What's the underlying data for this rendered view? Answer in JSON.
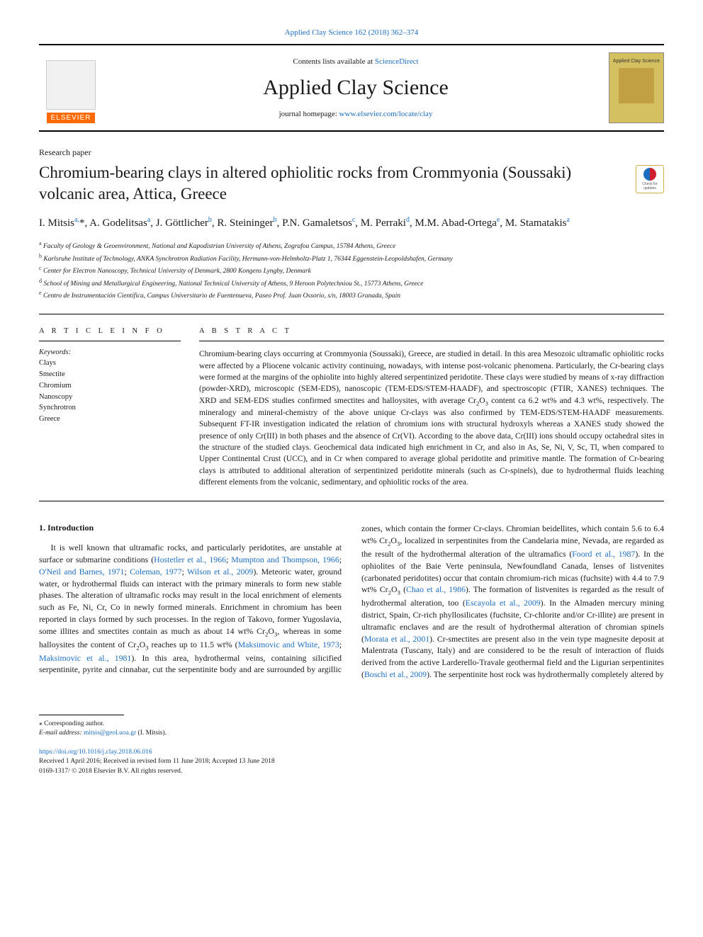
{
  "journal": {
    "ref": "Applied Clay Science 162 (2018) 362–374",
    "lists_pre": "Contents lists available at ",
    "lists_link": "ScienceDirect",
    "name": "Applied Clay Science",
    "homepage_pre": "journal homepage: ",
    "homepage_link": "www.elsevier.com/locate/clay",
    "publisher_logo_text": "ELSEVIER",
    "cover_title": "Applied Clay Science"
  },
  "article": {
    "type": "Research paper",
    "title": "Chromium-bearing clays in altered ophiolitic rocks from Crommyonia (Soussaki) volcanic area, Attica, Greece",
    "check_updates": "Check for updates"
  },
  "authors_html": "I. Mitsis<sup>a,</sup>*, A. Godelitsas<sup>a</sup>, J. Göttlicher<sup>b</sup>, R. Steininger<sup>b</sup>, P.N. Gamaletsos<sup>c</sup>, M. Perraki<sup>d</sup>, M.M. Abad-Ortega<sup>e</sup>, M. Stamatakis<sup>a</sup>",
  "affiliations": [
    {
      "sup": "a",
      "text": "Faculty of Geology & Geoenvironment, National and Kapodistrian University of Athens, Zografou Campus, 15784 Athens, Greece"
    },
    {
      "sup": "b",
      "text": "Karlsruhe Institute of Technology, ANKA Synchrotron Radiation Facility, Hermann-von-Helmholtz-Platz 1, 76344 Eggenstein-Leopoldshafen, Germany"
    },
    {
      "sup": "c",
      "text": "Center for Electron Nanoscopy, Technical University of Denmark, 2800 Kongens Lyngby, Denmark"
    },
    {
      "sup": "d",
      "text": "School of Mining and Metallurgical Engineering, National Technical University of Athens, 9 Heroon Polytechniou St., 15773 Athens, Greece"
    },
    {
      "sup": "e",
      "text": "Centro de Instrumentación Científica, Campus Universitario de Fuentenueva, Paseo Prof. Juan Ossorio, s/n, 18003 Granada, Spain"
    }
  ],
  "article_info": {
    "heading": "A R T I C L E  I N F O",
    "keywords_label": "Keywords:",
    "keywords": [
      "Clays",
      "Smectite",
      "Chromium",
      "Nanoscopy",
      "Synchrotron",
      "Greece"
    ]
  },
  "abstract": {
    "heading": "A B S T R A C T",
    "text_html": "Chromium-bearing clays occurring at Crommyonia (Soussaki), Greece, are studied in detail. In this area Mesozoic ultramafic ophiolitic rocks were affected by a Pliocene volcanic activity continuing, nowadays, with intense post-volcanic phenomena. Particularly, the Cr-bearing clays were formed at the margins of the ophiolite into highly altered serpentinized peridotite. These clays were studied by means of x-ray diffraction (powder-XRD), microscopic (SEM-EDS), nanoscopic (TEM-EDS/STEM-HAADF), and spectroscopic (FTIR, XANES) techniques. The XRD and SEM-EDS studies confirmed smectites and halloysites, with average Cr<sub>2</sub>O<sub>3</sub> content ca 6.2 wt% and 4.3 wt%, respectively. The mineralogy and mineral-chemistry of the above unique Cr-clays was also confirmed by TEM-EDS/STEM-HAADF measurements. Subsequent FT-IR investigation indicated the relation of chromium ions with structural hydroxyls whereas a XANES study showed the presence of only Cr(III) in both phases and the absence of Cr(VI). According to the above data, Cr(III) ions should occupy octahedral sites in the structure of the studied clays. Geochemical data indicated high enrichment in Cr, and also in As, Se, Ni, V, Sc, Tl, when compared to Upper Continental Crust (UCC), and in Cr when compared to average global peridotite and primitive mantle. The formation of Cr-bearing clays is attributed to additional alteration of serpentinized peridotite minerals (such as Cr-spinels), due to hydrothermal fluids leaching different elements from the volcanic, sedimentary, and ophiolitic rocks of the area."
  },
  "body": {
    "section1_title": "1. Introduction",
    "intro_html": "It is well known that ultramafic rocks, and particularly peridotites, are unstable at surface or submarine conditions (<a class='cite' href='#'>Hostetler et al., 1966</a>; <a class='cite' href='#'>Mumpton and Thompson, 1966</a>; <a class='cite' href='#'>O'Neil and Barnes, 1971</a>; <a class='cite' href='#'>Coleman, 1977</a>; <a class='cite' href='#'>Wilson et al., 2009</a>). Meteoric water, ground water, or hydrothermal fluids can interact with the primary minerals to form new stable phases. The alteration of ultramafic rocks may result in the local enrichment of elements such as Fe, Ni, Cr, Co in newly formed minerals. Enrichment in chromium has been reported in clays formed by such processes. In the region of Takovo, former Yugoslavia, some illites and smectites contain as much as about 14 wt% Cr<sub>2</sub>O<sub>3</sub>, whereas in some halloysites the content of Cr<sub>2</sub>O<sub>3</sub> reaches up to 11.5 wt% (<a class='cite' href='#'>Maksimovic and White, 1973</a>; <a class='cite' href='#'>Maksimovic et al., 1981</a>). In this area, hydrothermal veins, containing silicified serpentinite, pyrite and cinnabar, cut the serpentinite body and are surrounded by argillic zones, which contain the former Cr-clays. Chromian beidellites, which contain 5.6 to 6.4 wt% Cr<sub>2</sub>O<sub>3</sub>, localized in serpentinites from the Candelaria mine, Nevada, are regarded as the result of the hydrothermal alteration of the ultramafics (<a class='cite' href='#'>Foord et al., 1987</a>). In the ophiolites of the Baie Verte peninsula, Newfoundland Canada, lenses of listvenites (carbonated peridotites) occur that contain chromium-rich micas (fuchsite) with 4.4 to 7.9 wt% Cr<sub>2</sub>O<sub>3</sub> (<a class='cite' href='#'>Chao et al., 1986</a>). The formation of listvenites is regarded as the result of hydrothermal alteration, too (<a class='cite' href='#'>Escayola et al., 2009</a>). In the Almaden mercury mining district, Spain, Cr-rich phyllosilicates (fuchsite, Cr-chlorite and/or Cr-illite) are present in ultramafic enclaves and are the result of hydrothermal alteration of chromian spinels (<a class='cite' href='#'>Morata et al., 2001</a>). Cr-smectites are present also in the vein type magnesite deposit at Malentrata (Tuscany, Italy) and are considered to be the result of interaction of fluids derived from the active Larderello-Travale geothermal field and the Ligurian serpentinites (<a class='cite' href='#'>Boschi et al., 2009</a>). The serpentinite host rock was hydrothermally completely altered by"
  },
  "footnotes": {
    "corresp": "⁎ Corresponding author.",
    "email_label": "E-mail address: ",
    "email": "mitsis@geol.uoa.gr",
    "email_tail": " (I. Mitsis)."
  },
  "doi": {
    "link": "https://doi.org/10.1016/j.clay.2018.06.016",
    "received": "Received 1 April 2016; Received in revised form 11 June 2018; Accepted 13 June 2018",
    "copyright": "0169-1317/ © 2018 Elsevier B.V. All rights reserved."
  },
  "colors": {
    "link": "#1b6ec2",
    "elsevier_orange": "#ff6a00",
    "cover_bg": "#d4c060",
    "text": "#1a1a1a"
  }
}
